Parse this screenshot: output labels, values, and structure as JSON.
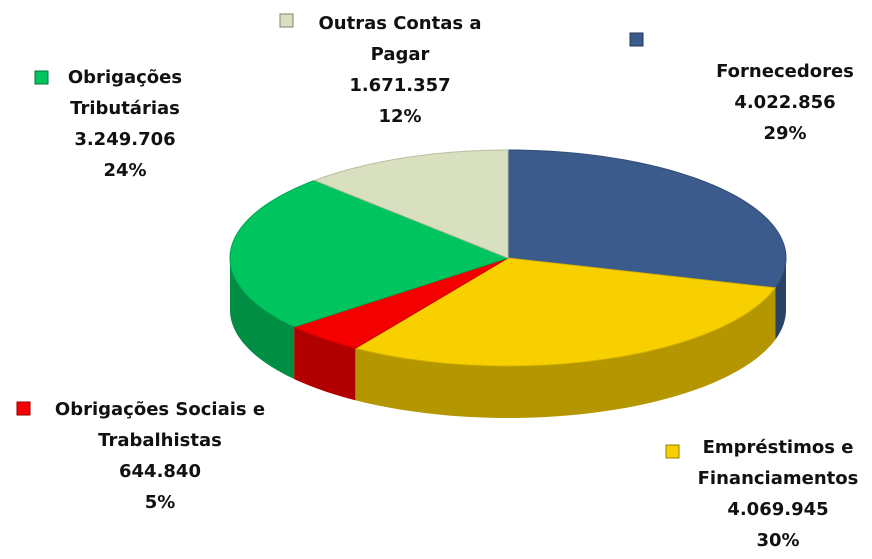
{
  "chart_data": {
    "type": "pie3d",
    "categories": [
      "Fornecedores",
      "Empréstimos e Financiamentos",
      "Obrigações Sociais e Trabalhistas",
      "Obrigações Tributárias",
      "Outras Contas a Pagar"
    ],
    "values": [
      4022856,
      4069945,
      644840,
      3249706,
      1671357
    ],
    "value_labels": [
      "4.022.856",
      "4.069.945",
      "644.840",
      "3.249.706",
      "1.671.357"
    ],
    "percents": [
      29,
      30,
      5,
      24,
      12
    ],
    "percent_labels": [
      "29%",
      "30%",
      "5%",
      "24%",
      "12%"
    ],
    "colors": [
      "#3b5b8c",
      "#f8d000",
      "#f50000",
      "#00c45e",
      "#d8e0c0"
    ]
  }
}
